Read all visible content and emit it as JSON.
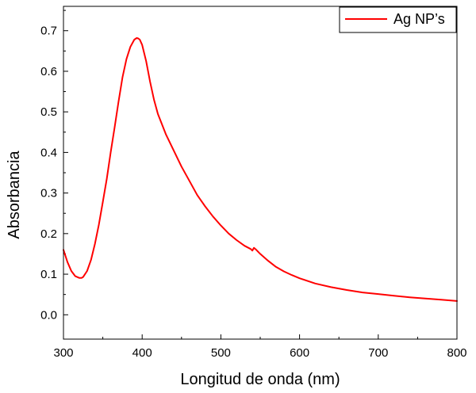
{
  "chart_data": {
    "type": "line",
    "title": "",
    "xlabel": "Longitud de onda (nm)",
    "ylabel": "Absorbancia",
    "xlim": [
      300,
      800
    ],
    "ylim": [
      -0.06,
      0.76
    ],
    "xticks": [
      300,
      400,
      500,
      600,
      700,
      800
    ],
    "xtick_labels": [
      "300",
      "400",
      "500",
      "600",
      "700",
      "800"
    ],
    "yticks": [
      0.0,
      0.1,
      0.2,
      0.3,
      0.4,
      0.5,
      0.6,
      0.7
    ],
    "ytick_labels": [
      "0.0",
      "0.1",
      "0.2",
      "0.3",
      "0.4",
      "0.5",
      "0.6",
      "0.7"
    ],
    "grid": false,
    "legend_position": "top-right",
    "series": [
      {
        "name": "Ag NP’s",
        "color": "#ff0000",
        "x": [
          300,
          305,
          310,
          315,
          320,
          323,
          325,
          330,
          335,
          340,
          345,
          350,
          355,
          360,
          365,
          370,
          375,
          380,
          385,
          390,
          393,
          395,
          397,
          400,
          405,
          410,
          415,
          420,
          425,
          430,
          440,
          450,
          460,
          470,
          480,
          490,
          500,
          510,
          520,
          530,
          538,
          540,
          542,
          545,
          550,
          560,
          570,
          580,
          590,
          600,
          620,
          640,
          660,
          680,
          700,
          720,
          740,
          760,
          780,
          800
        ],
        "y": [
          0.16,
          0.13,
          0.108,
          0.095,
          0.091,
          0.091,
          0.093,
          0.108,
          0.135,
          0.175,
          0.222,
          0.278,
          0.335,
          0.4,
          0.462,
          0.525,
          0.585,
          0.63,
          0.66,
          0.678,
          0.682,
          0.681,
          0.678,
          0.665,
          0.625,
          0.575,
          0.53,
          0.495,
          0.47,
          0.445,
          0.405,
          0.365,
          0.33,
          0.295,
          0.267,
          0.242,
          0.22,
          0.2,
          0.184,
          0.17,
          0.162,
          0.158,
          0.165,
          0.16,
          0.15,
          0.133,
          0.118,
          0.107,
          0.098,
          0.09,
          0.077,
          0.068,
          0.061,
          0.055,
          0.051,
          0.047,
          0.043,
          0.04,
          0.037,
          0.034
        ]
      }
    ]
  }
}
